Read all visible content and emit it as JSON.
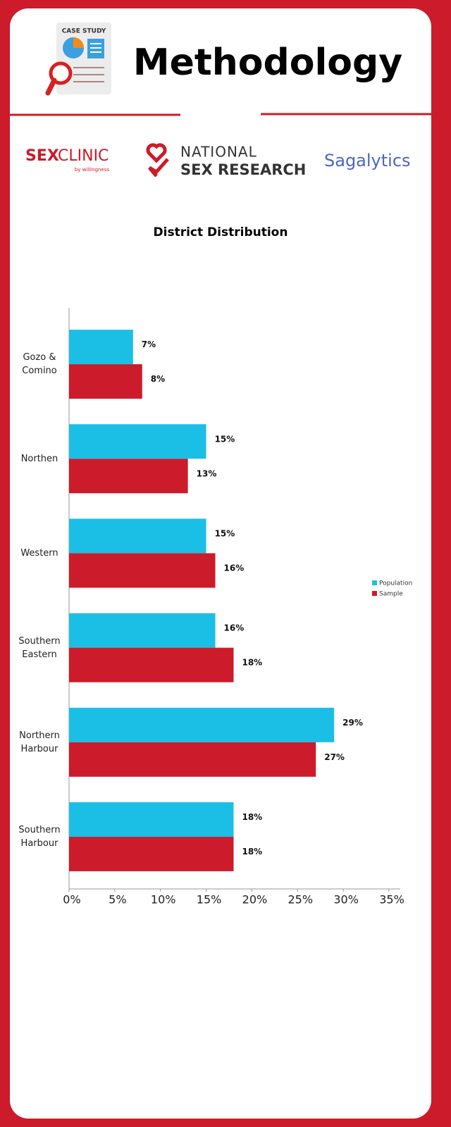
{
  "header": {
    "icon_label": "CASE STUDY",
    "title": "Methodology"
  },
  "logos": [
    {
      "bold": "SEX",
      "light": "CLINIC",
      "sub": "by willingness"
    },
    {
      "top": "NATIONAL",
      "bottom": "SEX RESEARCH"
    },
    {
      "name": "Sagalytics"
    }
  ],
  "chart_data": {
    "type": "hbar",
    "title": "District Distribution",
    "categories": [
      "Gozo & Comino",
      "Northen",
      "Western",
      "Southern Eastern",
      "Northern Harbour",
      "Southern Harbour"
    ],
    "series": [
      {
        "name": "Population",
        "color": "#1bbfe6",
        "values": [
          7,
          15,
          15,
          16,
          29,
          18
        ],
        "value_labels": [
          "7%",
          "15%",
          "15%",
          "16%",
          "29%",
          "18%"
        ]
      },
      {
        "name": "Sample",
        "color": "#cc1b2a",
        "values": [
          8,
          13,
          16,
          18,
          27,
          18
        ],
        "value_labels": [
          "8%",
          "13%",
          "16%",
          "18%",
          "27%",
          "18%"
        ]
      }
    ],
    "xlim": [
      0,
      35
    ],
    "xticks": [
      {
        "value": 0,
        "label": "0%"
      },
      {
        "value": 5,
        "label": "5%"
      },
      {
        "value": 10,
        "label": "10%"
      },
      {
        "value": 15,
        "label": "15%"
      },
      {
        "value": 20,
        "label": "20%"
      },
      {
        "value": 25,
        "label": "25%"
      },
      {
        "value": 30,
        "label": "30%"
      },
      {
        "value": 35,
        "label": "35%"
      }
    ],
    "legend": "right",
    "grid": false
  }
}
